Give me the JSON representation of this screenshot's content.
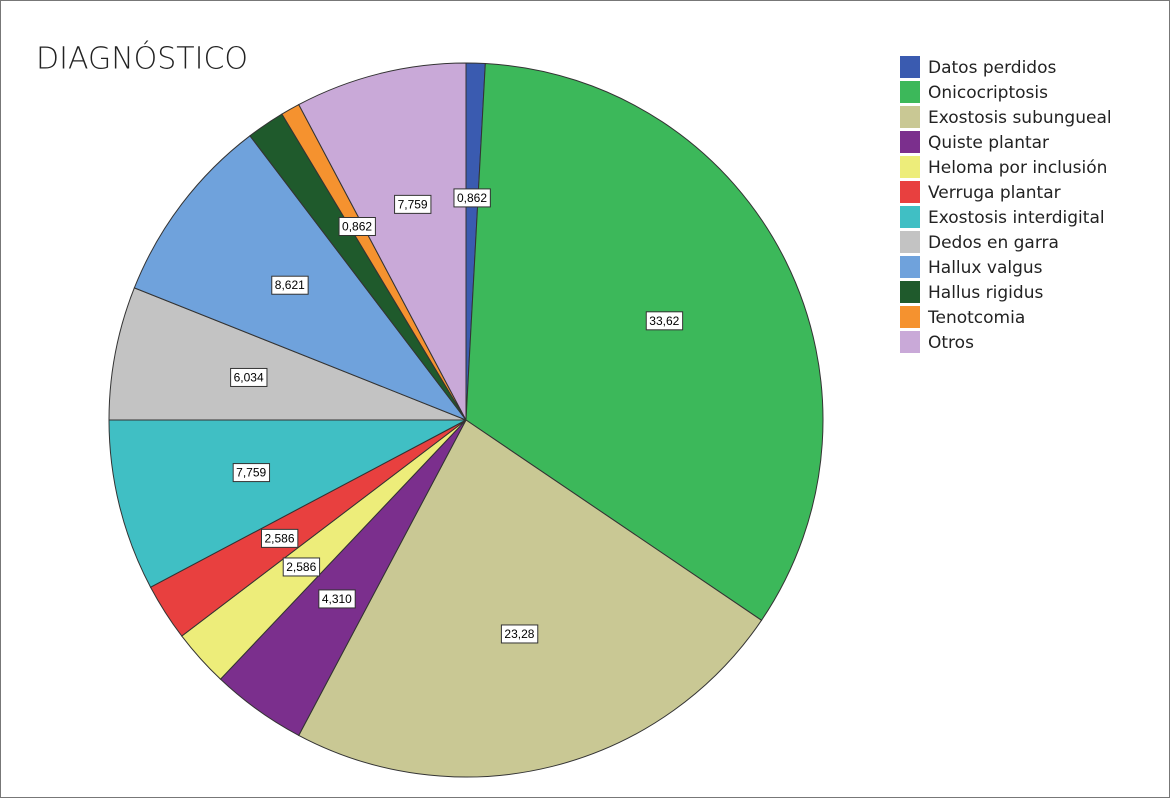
{
  "chart_data": {
    "type": "pie",
    "title": "DIAGNÓSTICO",
    "categories": [
      "Datos perdidos",
      "Onicocriptosis",
      "Exostosis subungueal",
      "Quiste plantar",
      "Heloma por inclusión",
      "Verruga plantar",
      "Exostosis interdigital",
      "Dedos en garra",
      "Hallux valgus",
      "Hallus rigidus",
      "Tenotcomia",
      "Otros"
    ],
    "values": [
      0.862,
      33.62,
      23.28,
      4.31,
      2.586,
      2.586,
      7.759,
      6.034,
      8.621,
      1.724,
      0.862,
      7.759
    ],
    "value_labels": [
      "0,862",
      "33,62",
      "23,28",
      "4,310",
      "2,586",
      "2,586",
      "7,759",
      "6,034",
      "8,621",
      null,
      "0,862",
      "7,759"
    ],
    "colors": [
      "#3a5bb0",
      "#3cb85a",
      "#c9c894",
      "#7b2f8d",
      "#eded7a",
      "#e8403f",
      "#40bfc4",
      "#c3c3c3",
      "#6fa2dc",
      "#1f5a2c",
      "#f5922f",
      "#c9a9d8"
    ]
  }
}
